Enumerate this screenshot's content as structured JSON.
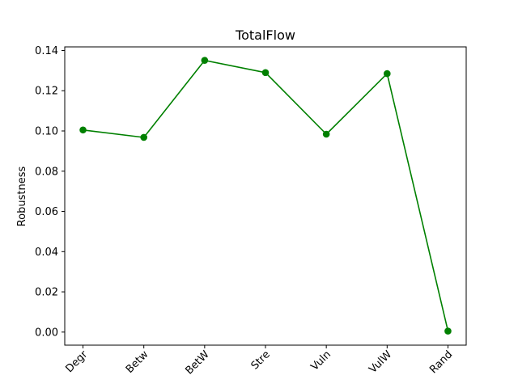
{
  "chart_data": {
    "type": "line",
    "title": "TotalFlow",
    "xlabel": "",
    "ylabel": "Robustness",
    "categories": [
      "Degr",
      "Betw",
      "BetW",
      "Stre",
      "Vuln",
      "VulW",
      "Rand"
    ],
    "series": [
      {
        "values": [
          0.1005,
          0.0968,
          0.1351,
          0.129,
          0.0984,
          0.1285,
          0.0005
        ],
        "color": "#008000",
        "marker": "circle"
      }
    ],
    "ylim": [
      -0.0065,
      0.1418
    ],
    "yticks": [
      0.0,
      0.02,
      0.04,
      0.06,
      0.08,
      0.1,
      0.12,
      0.14
    ],
    "ytick_labels": [
      "0.00",
      "0.02",
      "0.04",
      "0.06",
      "0.08",
      "0.10",
      "0.12",
      "0.14"
    ],
    "xtick_rotation": 45,
    "grid": false,
    "legend": "none"
  }
}
